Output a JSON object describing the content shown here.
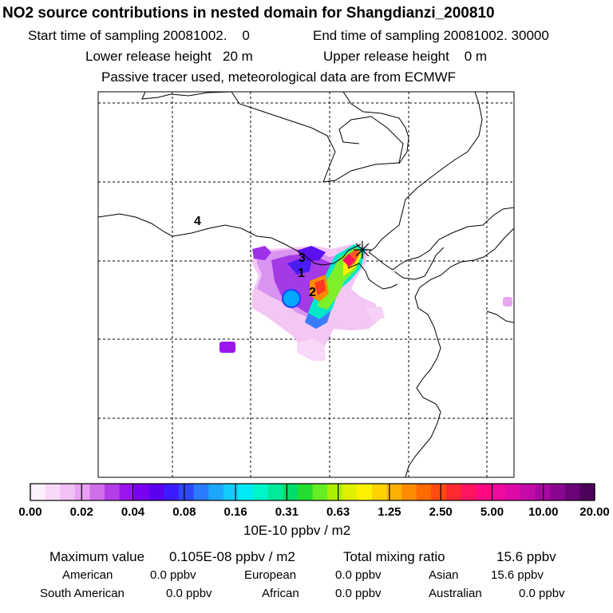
{
  "header": {
    "title": "NO2 source contributions in nested domain for Shangdianzi_200810",
    "start": "Start time of sampling 20081002.    0",
    "end": "End time of sampling 20081002. 30000",
    "lower": "Lower release height   20 m",
    "upper": "Upper release height    0 m",
    "note": "Passive tracer used, meteorological data are from ECMWF"
  },
  "map": {
    "region_labels": [
      "1",
      "2",
      "3",
      "4"
    ],
    "receptor_marker": "receptor-star-icon"
  },
  "colorbar": {
    "ticks": [
      "0.00",
      "0.02",
      "0.04",
      "0.08",
      "0.16",
      "0.31",
      "0.63",
      "1.25",
      "2.50",
      "5.00",
      "10.00",
      "20.00"
    ],
    "unit": "10E-10 ppbv / m2",
    "colors": [
      "#fdf0fd",
      "#f8daf8",
      "#f2c0f5",
      "#e8a0f0",
      "#cf6ee8",
      "#b33de6",
      "#9a16ec",
      "#7a00f0",
      "#5b00f0",
      "#3c1cff",
      "#2e48ff",
      "#2a7cff",
      "#1ea6ff",
      "#12ccff",
      "#00eaf5",
      "#00f5c8",
      "#00ea99",
      "#00dd6a",
      "#22dd30",
      "#66ee22",
      "#aaf000",
      "#dff000",
      "#fff200",
      "#ffd300",
      "#ffb000",
      "#ff8c00",
      "#ff6a00",
      "#ff4a10",
      "#ff2a30",
      "#ff1560",
      "#ff0a85",
      "#f00aa0",
      "#dd0aa8",
      "#c40aa8",
      "#a8089f",
      "#8a0690",
      "#6a0478",
      "#4a025a"
    ]
  },
  "footer": {
    "max_label": "Maximum value",
    "max_value": "0.105E-08 ppbv / m2",
    "total_label": "Total mixing ratio",
    "total_value": "15.6 ppbv",
    "regions": [
      {
        "name": "American",
        "value": "0.0 ppbv"
      },
      {
        "name": "European",
        "value": "0.0 ppbv"
      },
      {
        "name": "Asian",
        "value": "15.6 ppbv"
      },
      {
        "name": "South American",
        "value": "0.0 ppbv"
      },
      {
        "name": "African",
        "value": "0.0 ppbv"
      },
      {
        "name": "Australian",
        "value": "0.0 ppbv"
      }
    ]
  }
}
